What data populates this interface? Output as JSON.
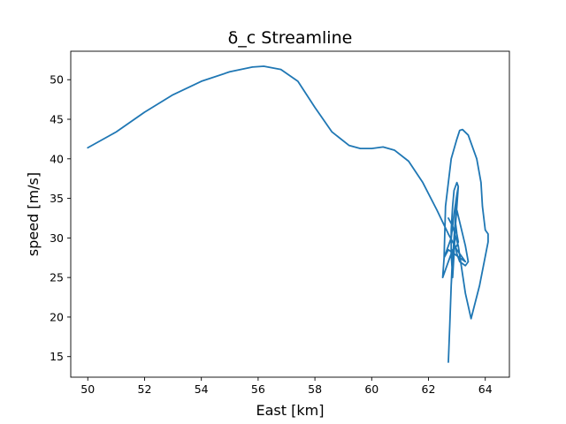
{
  "chart_data": {
    "type": "line",
    "title": "δ_c Streamline",
    "xlabel": "East [km]",
    "ylabel": "speed [m/s]",
    "xlim": [
      49.4,
      64.85
    ],
    "ylim": [
      12.4,
      53.6
    ],
    "xticks": [
      50,
      52,
      54,
      56,
      58,
      60,
      62,
      64
    ],
    "yticks": [
      15,
      20,
      25,
      30,
      35,
      40,
      45,
      50
    ],
    "grid": false,
    "series": [
      {
        "color": "#1f77b4",
        "x": [
          50.0,
          51.0,
          52.0,
          53.0,
          54.0,
          55.0,
          55.8,
          56.2,
          56.8,
          57.4,
          58.0,
          58.6,
          59.2,
          59.6,
          60.0,
          60.4,
          60.8,
          61.3,
          61.8,
          62.3,
          62.7,
          63.0,
          63.2,
          63.3,
          63.1,
          62.9,
          62.7,
          62.55,
          62.5,
          62.55,
          62.7,
          62.85,
          63.0,
          63.05,
          63.0,
          62.95,
          63.0,
          63.3,
          63.4,
          63.3,
          63.1,
          63.0,
          62.95,
          62.85,
          62.8,
          62.75,
          62.7,
          62.75,
          62.8,
          62.9,
          63.0,
          63.05,
          63.0,
          62.9,
          62.85,
          62.8,
          62.8,
          62.85,
          62.9,
          62.95,
          63.0,
          63.05,
          63.0,
          62.9,
          62.8,
          62.65,
          62.55,
          62.6,
          62.8,
          63.0,
          63.1,
          63.2,
          63.4,
          63.7,
          63.85,
          63.9,
          64.0,
          64.1,
          64.1,
          63.8,
          63.5,
          63.3,
          63.05,
          62.85,
          62.7
        ],
        "y": [
          41.4,
          43.4,
          45.9,
          48.1,
          49.8,
          51.0,
          51.6,
          51.7,
          51.3,
          49.8,
          46.5,
          43.4,
          41.7,
          41.3,
          41.3,
          41.5,
          41.1,
          39.7,
          37.0,
          33.5,
          30.5,
          28.5,
          27.5,
          27.0,
          27.5,
          28.0,
          28.5,
          27.5,
          25.0,
          25.5,
          27.0,
          28.5,
          29.0,
          29.5,
          30.5,
          32.0,
          33.5,
          29.0,
          27.0,
          26.5,
          27.0,
          28.0,
          29.0,
          28.0,
          24.0,
          19.0,
          14.3,
          19.0,
          24.0,
          30.0,
          35.0,
          36.5,
          37.0,
          36.0,
          34.0,
          31.0,
          28.0,
          25.0,
          28.0,
          31.5,
          34.0,
          36.5,
          35.5,
          33.0,
          30.0,
          28.5,
          27.5,
          34.0,
          40.0,
          42.5,
          43.6,
          43.7,
          43.0,
          40.0,
          37.0,
          34.0,
          31.0,
          30.5,
          29.5,
          24.0,
          19.8,
          23.0,
          29.0,
          31.5,
          32.5
        ]
      }
    ]
  }
}
